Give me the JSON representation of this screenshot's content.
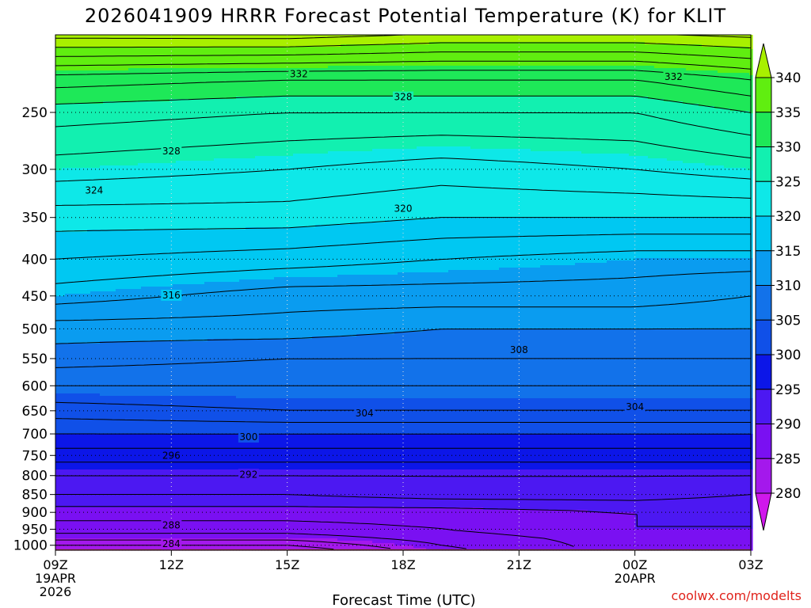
{
  "chart_data": {
    "type": "contour",
    "title": "2026041909 HRRR Forecast Potential Temperature (K) for KLIT",
    "xlabel": "Forecast Time (UTC)",
    "ylabel": "",
    "credit": "coolwx.com/modelts",
    "x_hours": [
      0,
      18
    ],
    "x_ticks": [
      {
        "hour": 0,
        "label": "09Z",
        "sub1": "19APR",
        "sub2": "2026"
      },
      {
        "hour": 3,
        "label": "12Z"
      },
      {
        "hour": 6,
        "label": "15Z"
      },
      {
        "hour": 9,
        "label": "18Z"
      },
      {
        "hour": 12,
        "label": "21Z"
      },
      {
        "hour": 15,
        "label": "00Z",
        "sub1": "20APR"
      },
      {
        "hour": 18,
        "label": "03Z"
      }
    ],
    "y_pressure_range_hPa": [
      1016,
      195
    ],
    "y_ticks": [
      "250",
      "300",
      "350",
      "400",
      "450",
      "500",
      "550",
      "600",
      "650",
      "700",
      "750",
      "800",
      "850",
      "900",
      "950",
      "1000"
    ],
    "colorbar": {
      "labels": [
        "340",
        "335",
        "330",
        "325",
        "320",
        "315",
        "310",
        "305",
        "300",
        "295",
        "290",
        "285",
        "280"
      ],
      "bins": [
        {
          "min": 340,
          "color": "#a8f000"
        },
        {
          "min": 335,
          "color": "#60ee10"
        },
        {
          "min": 330,
          "color": "#1ee858"
        },
        {
          "min": 325,
          "color": "#12f0b0"
        },
        {
          "min": 320,
          "color": "#0ee8e8"
        },
        {
          "min": 315,
          "color": "#00c8f2"
        },
        {
          "min": 310,
          "color": "#0a9cf0"
        },
        {
          "min": 305,
          "color": "#1272ea"
        },
        {
          "min": 300,
          "color": "#1050e8"
        },
        {
          "min": 295,
          "color": "#0c16e8"
        },
        {
          "min": 290,
          "color": "#4c18f2"
        },
        {
          "min": 285,
          "color": "#7a10f2"
        },
        {
          "min": 280,
          "color": "#a418ec"
        },
        {
          "min": 275,
          "color": "#d018ec"
        }
      ]
    },
    "surface_color": "#a8502a",
    "surface_pressure_hPa": 1013,
    "profile_theta_K": [
      {
        "hour": 0,
        "levels": [
          [
            1000,
            282
          ],
          [
            975,
            285
          ],
          [
            950,
            287
          ],
          [
            900,
            289
          ],
          [
            850,
            292
          ],
          [
            800,
            294
          ],
          [
            750,
            297
          ],
          [
            700,
            300
          ],
          [
            650,
            303
          ],
          [
            600,
            306
          ],
          [
            550,
            309
          ],
          [
            500,
            311
          ],
          [
            450,
            315
          ],
          [
            400,
            318
          ],
          [
            350,
            321
          ],
          [
            300,
            325
          ],
          [
            250,
            329
          ],
          [
            225,
            333
          ],
          [
            200,
            341
          ]
        ]
      },
      {
        "hour": 6,
        "levels": [
          [
            1000,
            282
          ],
          [
            975,
            285
          ],
          [
            950,
            287
          ],
          [
            900,
            289
          ],
          [
            850,
            292
          ],
          [
            800,
            294
          ],
          [
            750,
            297
          ],
          [
            700,
            300
          ],
          [
            650,
            304
          ],
          [
            600,
            306
          ],
          [
            550,
            308
          ],
          [
            500,
            311
          ],
          [
            450,
            313
          ],
          [
            400,
            317
          ],
          [
            350,
            321
          ],
          [
            300,
            324
          ],
          [
            250,
            328
          ],
          [
            225,
            332
          ],
          [
            200,
            341
          ]
        ]
      },
      {
        "hour": 10,
        "levels": [
          [
            1000,
            286
          ],
          [
            975,
            287
          ],
          [
            950,
            288
          ],
          [
            900,
            289
          ],
          [
            850,
            293
          ],
          [
            800,
            294
          ],
          [
            750,
            297
          ],
          [
            700,
            300
          ],
          [
            650,
            304
          ],
          [
            600,
            306
          ],
          [
            550,
            308
          ],
          [
            500,
            310
          ],
          [
            450,
            313
          ],
          [
            400,
            316
          ],
          [
            350,
            320
          ],
          [
            300,
            323
          ],
          [
            250,
            328
          ],
          [
            225,
            332
          ],
          [
            200,
            340
          ]
        ]
      },
      {
        "hour": 15,
        "levels": [
          [
            1000,
            289
          ],
          [
            975,
            289
          ],
          [
            950,
            290
          ],
          [
            900,
            290
          ],
          [
            850,
            293
          ],
          [
            800,
            294
          ],
          [
            750,
            297
          ],
          [
            700,
            300
          ],
          [
            650,
            304
          ],
          [
            600,
            306
          ],
          [
            550,
            308
          ],
          [
            500,
            310
          ],
          [
            450,
            313
          ],
          [
            400,
            315
          ],
          [
            350,
            320
          ],
          [
            300,
            324
          ],
          [
            250,
            328
          ],
          [
            225,
            332
          ],
          [
            200,
            340
          ]
        ]
      },
      {
        "hour": 18,
        "levels": [
          [
            1000,
            289
          ],
          [
            975,
            289
          ],
          [
            950,
            290
          ],
          [
            900,
            290
          ],
          [
            850,
            292
          ],
          [
            800,
            294
          ],
          [
            750,
            297
          ],
          [
            700,
            300
          ],
          [
            650,
            304
          ],
          [
            600,
            306
          ],
          [
            550,
            308
          ],
          [
            500,
            310
          ],
          [
            450,
            312
          ],
          [
            400,
            315
          ],
          [
            350,
            320
          ],
          [
            300,
            325
          ],
          [
            250,
            330
          ],
          [
            225,
            334
          ],
          [
            200,
            341
          ]
        ]
      }
    ],
    "contour_interval_K": 2,
    "contour_labels": [
      {
        "value": "332",
        "hour": 6.3,
        "p": 221
      },
      {
        "value": "332",
        "hour": 16.0,
        "p": 223
      },
      {
        "value": "328",
        "hour": 9.0,
        "p": 238
      },
      {
        "value": "328",
        "hour": 3.0,
        "p": 283
      },
      {
        "value": "324",
        "hour": 1.0,
        "p": 321
      },
      {
        "value": "320",
        "hour": 9.0,
        "p": 340
      },
      {
        "value": "316",
        "hour": 3.0,
        "p": 449
      },
      {
        "value": "308",
        "hour": 12.0,
        "p": 535
      },
      {
        "value": "304",
        "hour": 8.0,
        "p": 655
      },
      {
        "value": "304",
        "hour": 15.0,
        "p": 642
      },
      {
        "value": "300",
        "hour": 5.0,
        "p": 707
      },
      {
        "value": "296",
        "hour": 3.0,
        "p": 750
      },
      {
        "value": "292",
        "hour": 5.0,
        "p": 797
      },
      {
        "value": "288",
        "hour": 3.0,
        "p": 938
      },
      {
        "value": "284",
        "hour": 3.0,
        "p": 996
      }
    ]
  }
}
